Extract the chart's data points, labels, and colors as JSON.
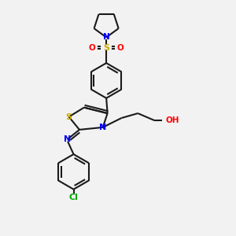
{
  "bg_color": "#f2f2f2",
  "line_color": "#1a1a1a",
  "bond_lw": 1.5,
  "figsize": [
    3.0,
    3.0
  ],
  "dpi": 100,
  "colors": {
    "N": "#0000ff",
    "S": "#ccaa00",
    "O": "#ff0000",
    "Cl": "#00aa00",
    "H": "#555555"
  }
}
